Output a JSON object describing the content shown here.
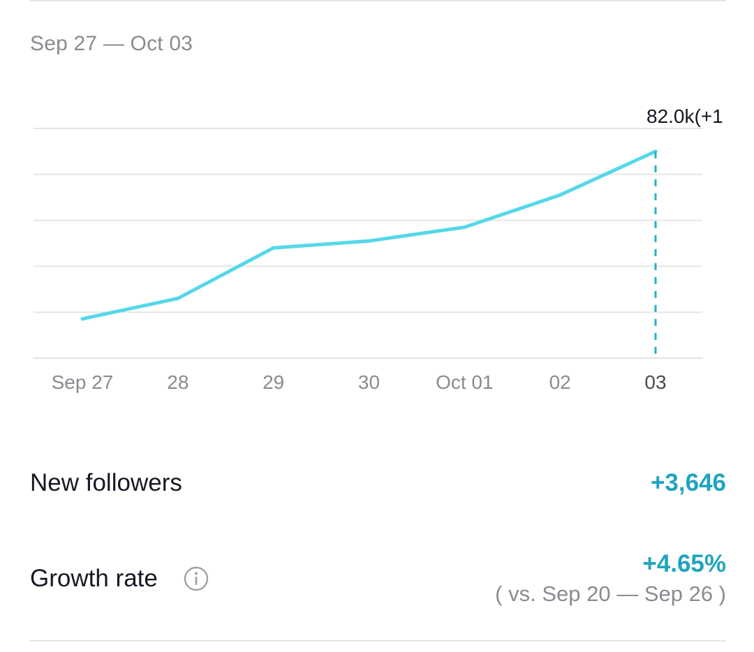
{
  "header": {
    "date_range": "Sep 27 — Oct 03"
  },
  "chart_data": {
    "type": "line",
    "categories": [
      "Sep 27",
      "28",
      "29",
      "30",
      "Oct 01",
      "02",
      "03"
    ],
    "values": [
      78.354,
      78.8,
      79.9,
      80.05,
      80.35,
      81.05,
      82.0
    ],
    "ylim": [
      77.5,
      82.5
    ],
    "grid": true,
    "line_color": "#55d8e8",
    "highlight": {
      "index": 6,
      "label": "82.0k(+1"
    }
  },
  "stats": {
    "new_followers": {
      "label": "New followers",
      "value": "+3,646"
    },
    "growth_rate": {
      "label": "Growth rate",
      "value": "+4.65%",
      "comparison": "( vs. Sep 20 — Sep 26 )",
      "icon": "info-icon"
    }
  },
  "colors": {
    "accent": "#20a4bd",
    "line": "#55d8e8",
    "muted": "#8a8b91",
    "text": "#161823",
    "grid": "#e6e6e6"
  }
}
